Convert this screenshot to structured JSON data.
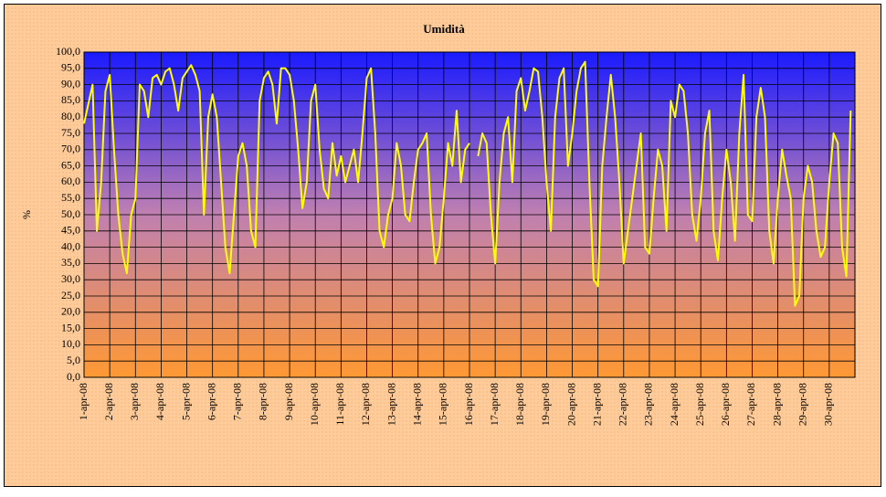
{
  "chart_data": {
    "type": "line",
    "title": "Umidità",
    "y_label": "%",
    "categories": [
      "1-apr-08",
      null,
      null,
      null,
      null,
      null,
      "2-apr-08",
      null,
      null,
      null,
      null,
      null,
      "3-apr-08",
      null,
      null,
      null,
      null,
      null,
      "4-apr-08",
      null,
      null,
      null,
      null,
      null,
      "5-apr-08",
      null,
      null,
      null,
      null,
      null,
      "6-apr-08",
      null,
      null,
      null,
      null,
      null,
      "7-apr-08",
      null,
      null,
      null,
      null,
      null,
      "8-apr-08",
      null,
      null,
      null,
      null,
      null,
      "9-apr-08",
      null,
      null,
      null,
      null,
      null,
      "10-apr-08",
      null,
      null,
      null,
      null,
      null,
      "11-apr-08",
      null,
      null,
      null,
      null,
      null,
      "12-apr-08",
      null,
      null,
      null,
      null,
      null,
      "13-apr-08",
      null,
      null,
      null,
      null,
      null,
      "14-apr-08",
      null,
      null,
      null,
      null,
      null,
      "15-apr-08",
      null,
      null,
      null,
      null,
      null,
      "16-apr-08",
      null,
      null,
      null,
      null,
      null,
      "17-apr-08",
      null,
      null,
      null,
      null,
      null,
      "18-apr-08",
      null,
      null,
      null,
      null,
      null,
      "19-apr-08",
      null,
      null,
      null,
      null,
      null,
      "20-apr-08",
      null,
      null,
      null,
      null,
      null,
      "21-apr-08",
      null,
      null,
      null,
      null,
      null,
      "22-apr-08",
      null,
      null,
      null,
      null,
      null,
      "23-apr-08",
      null,
      null,
      null,
      null,
      null,
      "24-apr-08",
      null,
      null,
      null,
      null,
      null,
      "25-apr-08",
      null,
      null,
      null,
      null,
      null,
      "26-apr-08",
      null,
      null,
      null,
      null,
      null,
      "27-apr-08",
      null,
      null,
      null,
      null,
      null,
      "28-apr-08",
      null,
      null,
      null,
      null,
      null,
      "29-apr-08",
      null,
      null,
      null,
      null,
      null,
      "30-apr-08",
      null,
      null,
      null,
      null,
      null
    ],
    "series": [
      {
        "name": "Umidità",
        "color": "#ffff00",
        "values": [
          78,
          84,
          90,
          45,
          60,
          88,
          93,
          70,
          50,
          38,
          32,
          50,
          55,
          90,
          88,
          80,
          92,
          93,
          90,
          94,
          95,
          90,
          82,
          92,
          94,
          96,
          93,
          88,
          50,
          80,
          87,
          80,
          60,
          40,
          32,
          50,
          68,
          72,
          65,
          45,
          40,
          85,
          92,
          94,
          90,
          78,
          95,
          95,
          93,
          85,
          70,
          52,
          60,
          85,
          90,
          70,
          58,
          55,
          72,
          62,
          68,
          60,
          65,
          70,
          60,
          75,
          92,
          95,
          75,
          45,
          40,
          50,
          55,
          72,
          65,
          50,
          48,
          60,
          70,
          72,
          75,
          50,
          35,
          40,
          55,
          72,
          65,
          82,
          60,
          70,
          72,
          null,
          68,
          75,
          72,
          50,
          35,
          60,
          75,
          80,
          60,
          88,
          92,
          82,
          88,
          95,
          94,
          80,
          60,
          45,
          80,
          92,
          95,
          65,
          75,
          88,
          95,
          97,
          60,
          30,
          28,
          65,
          80,
          93,
          80,
          60,
          35,
          45,
          55,
          65,
          75,
          40,
          38,
          55,
          70,
          65,
          45,
          85,
          80,
          90,
          88,
          75,
          50,
          42,
          55,
          75,
          82,
          45,
          36,
          55,
          70,
          60,
          42,
          75,
          93,
          50,
          48,
          80,
          89,
          80,
          45,
          35,
          55,
          70,
          62,
          55,
          22,
          25,
          55,
          65,
          60,
          45,
          37,
          40,
          60,
          75,
          72,
          40,
          31,
          82
        ]
      }
    ],
    "ylim": [
      0,
      100
    ],
    "yticks": [
      {
        "value": 0,
        "label": "0,0"
      },
      {
        "value": 5,
        "label": "5,0"
      },
      {
        "value": 10,
        "label": "10,0"
      },
      {
        "value": 15,
        "label": "15,0"
      },
      {
        "value": 20,
        "label": "20,0"
      },
      {
        "value": 25,
        "label": "25,0"
      },
      {
        "value": 30,
        "label": "30,0"
      },
      {
        "value": 35,
        "label": "35,0"
      },
      {
        "value": 40,
        "label": "40,0"
      },
      {
        "value": 45,
        "label": "45,0"
      },
      {
        "value": 50,
        "label": "50,0"
      },
      {
        "value": 55,
        "label": "55,0"
      },
      {
        "value": 60,
        "label": "60,0"
      },
      {
        "value": 65,
        "label": "65,0"
      },
      {
        "value": 70,
        "label": "70,0"
      },
      {
        "value": 75,
        "label": "75,0"
      },
      {
        "value": 80,
        "label": "80,0"
      },
      {
        "value": 85,
        "label": "85,0"
      },
      {
        "value": 90,
        "label": "90,0"
      },
      {
        "value": 95,
        "label": "95,0"
      },
      {
        "value": 100,
        "label": "100,0"
      }
    ],
    "grid": true
  }
}
